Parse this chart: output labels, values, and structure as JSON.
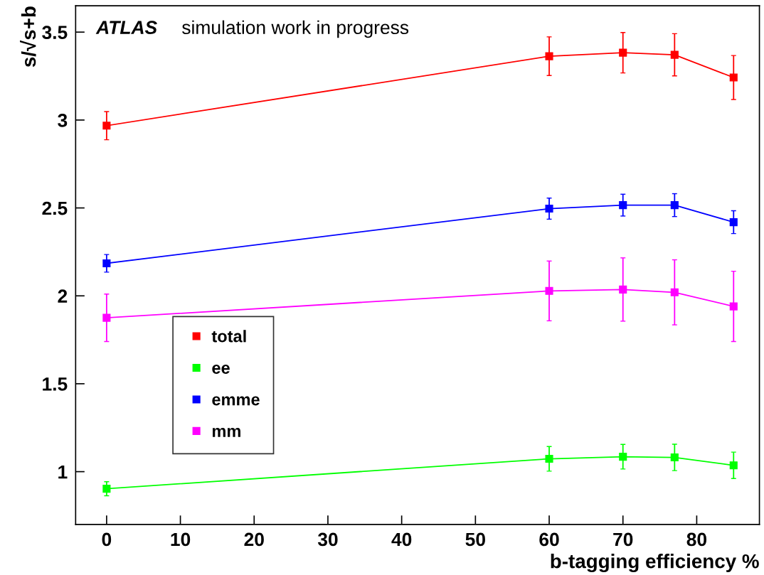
{
  "chart_data": {
    "type": "line",
    "xlabel": "b-tagging efficiency %",
    "ylabel": "s/√s+b",
    "x": [
      0,
      60,
      70,
      77,
      85
    ],
    "xlim": [
      -4.2,
      88.5
    ],
    "xticks": [
      0,
      10,
      20,
      30,
      40,
      50,
      60,
      70,
      80
    ],
    "ylim": [
      0.7,
      3.65
    ],
    "yticks": [
      1,
      1.5,
      2,
      2.5,
      3,
      3.5
    ],
    "marker": "square",
    "legend": "lower left",
    "grid": false,
    "annotations": [
      "ATLAS",
      "simulation work in progress"
    ],
    "series": [
      {
        "name": "total",
        "color": "#ff0000",
        "values": [
          2.968,
          3.363,
          3.383,
          3.371,
          3.242
        ],
        "errors": [
          0.08,
          0.11,
          0.115,
          0.12,
          0.125
        ]
      },
      {
        "name": "ee",
        "color": "#00ff00",
        "values": [
          0.903,
          1.073,
          1.085,
          1.081,
          1.036
        ],
        "errors": [
          0.04,
          0.07,
          0.07,
          0.075,
          0.075
        ]
      },
      {
        "name": "emme",
        "color": "#0000ff",
        "values": [
          2.185,
          2.496,
          2.516,
          2.516,
          2.419
        ],
        "errors": [
          0.05,
          0.06,
          0.062,
          0.065,
          0.065
        ]
      },
      {
        "name": "mm",
        "color": "#ff00ff",
        "values": [
          1.875,
          2.028,
          2.036,
          2.02,
          1.94
        ],
        "errors": [
          0.135,
          0.17,
          0.18,
          0.185,
          0.2
        ]
      }
    ]
  }
}
